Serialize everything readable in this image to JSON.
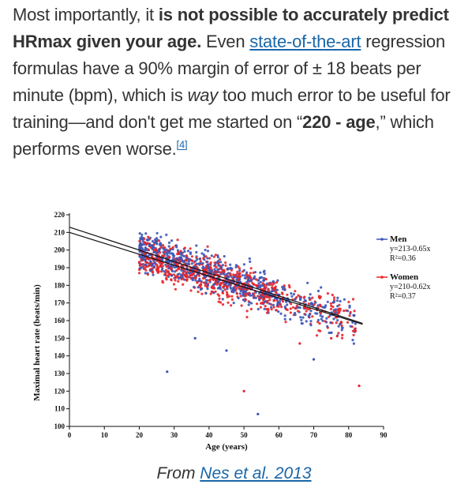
{
  "article": {
    "p_1": "Most importantly, it ",
    "p_bold_1": "is not possible to accurately predict HRmax given your age.",
    "p_2": " Even ",
    "p_link": "state-of-the-art",
    "p_3": " regression formulas have a 90% margin of error of ± 18 beats per minute (bpm), which is ",
    "p_em": "way",
    "p_4": " too much error to be useful for training—and don't get me started on “",
    "p_bold_2": "220 - age",
    "p_5": ",” which performs even worse.",
    "p_ref": "[4]"
  },
  "caption": {
    "prefix": "From ",
    "link": "Nes et al. 2013"
  },
  "colors": {
    "link": "#1a66a8",
    "men": "#3a56b8",
    "women": "#e8262a",
    "text": "#333333"
  },
  "chart_data": {
    "type": "scatter",
    "xlabel": "Age (years)",
    "ylabel": "Maximal heart rate (beats/min)",
    "xlim": [
      0,
      90
    ],
    "ylim": [
      100,
      220
    ],
    "x_ticks": [
      "0",
      "10",
      "20",
      "30",
      "40",
      "50",
      "60",
      "70",
      "80",
      "90"
    ],
    "y_ticks": [
      "100",
      "110",
      "120",
      "130",
      "140",
      "150",
      "160",
      "170",
      "180",
      "190",
      "200",
      "210",
      "220"
    ],
    "series": [
      {
        "name": "Men",
        "equation": "y=213-0.65x",
        "r2": "R²=0.36",
        "color": "#3a56b8",
        "intercept": 213,
        "slope": -0.65
      },
      {
        "name": "Women",
        "equation": "y=210-0.62x",
        "r2": "R²=0.37",
        "color": "#e8262a",
        "intercept": 210,
        "slope": -0.62
      }
    ],
    "regression_x_range": [
      0,
      84
    ],
    "legend_position": "right",
    "grid": false
  }
}
